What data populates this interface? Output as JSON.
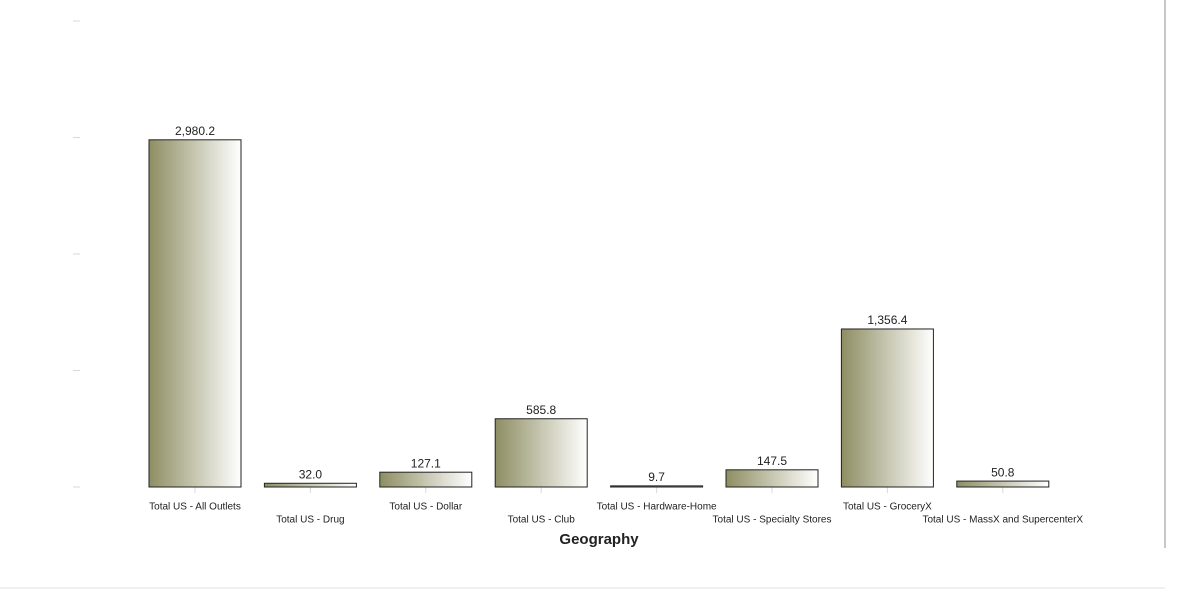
{
  "chart_data": {
    "type": "bar",
    "x_label": "Geography",
    "categories": [
      "Total US - All Outlets",
      "Total US - Drug",
      "Total US - Dollar",
      "Total US - Club",
      "Total US - Hardware-Home",
      "Total US - Specialty Stores",
      "Total US - GroceryX",
      "Total US - MassX and SupercenterX"
    ],
    "values": [
      2980.2,
      32.0,
      127.1,
      585.8,
      9.7,
      147.5,
      1356.4,
      50.8
    ],
    "value_labels": [
      "2,980.2",
      "32.0",
      "127.1",
      "585.8",
      "9.7",
      "147.5",
      "1,356.4",
      "50.8"
    ],
    "color": "#8e8e64",
    "ylim": [
      0,
      4000
    ],
    "yticks": [
      0,
      1000,
      2000,
      3000,
      4000
    ]
  }
}
